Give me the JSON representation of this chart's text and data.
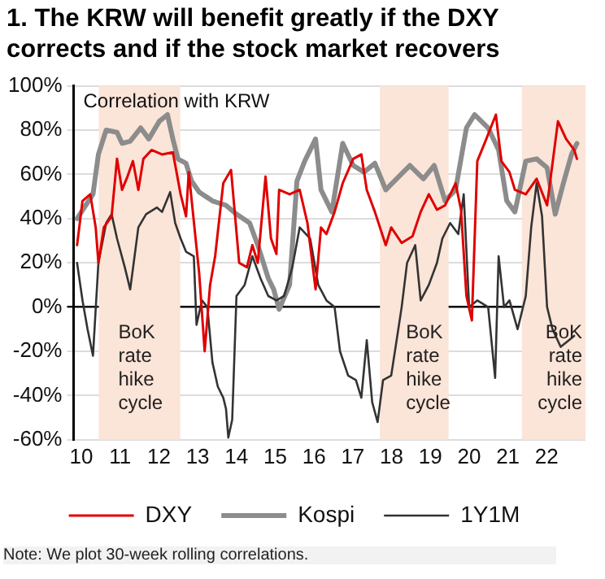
{
  "chart_data": {
    "type": "line",
    "title": "1. The KRW will benefit greatly if the DXY corrects and if the stock market recovers",
    "annotations": [
      "Correlation with KRW",
      "Note: We plot 30-week rolling correlations."
    ],
    "xlim": [
      2009.8,
      2023.0
    ],
    "xticks": [
      {
        "value": 2010,
        "label": "10"
      },
      {
        "value": 2011,
        "label": "11"
      },
      {
        "value": 2012,
        "label": "12"
      },
      {
        "value": 2013,
        "label": "13"
      },
      {
        "value": 2014,
        "label": "14"
      },
      {
        "value": 2015,
        "label": "15"
      },
      {
        "value": 2016,
        "label": "16"
      },
      {
        "value": 2017,
        "label": "17"
      },
      {
        "value": 2018,
        "label": "18"
      },
      {
        "value": 2019,
        "label": "19"
      },
      {
        "value": 2020,
        "label": "20"
      },
      {
        "value": 2021,
        "label": "21"
      },
      {
        "value": 2022,
        "label": "22"
      }
    ],
    "ylim": [
      -60,
      100
    ],
    "yticks": [
      {
        "value": -60,
        "label": "-60%"
      },
      {
        "value": -40,
        "label": "-40%"
      },
      {
        "value": -20,
        "label": "-20%"
      },
      {
        "value": 0,
        "label": "0%"
      },
      {
        "value": 20,
        "label": "20%"
      },
      {
        "value": 40,
        "label": "40%"
      },
      {
        "value": 60,
        "label": "60%"
      },
      {
        "value": 80,
        "label": "80%"
      },
      {
        "value": 100,
        "label": "100%"
      }
    ],
    "grid": "y",
    "legend": "bottom",
    "marker": "none",
    "line_style": "solid",
    "bands": [
      {
        "axis": "x",
        "from": 2010.45,
        "to": 2012.55,
        "label": "BoK rate hike cycle",
        "color": "#fbe4d8"
      },
      {
        "axis": "x",
        "from": 2017.7,
        "to": 2019.47,
        "label": "BoK rate hike cycle",
        "color": "#fbe4d8"
      },
      {
        "axis": "x",
        "from": 2021.36,
        "to": 2023.0,
        "label": "BoK rate hike cycle",
        "color": "#fbe4d8"
      }
    ],
    "series": [
      {
        "name": "DXY",
        "color": "#e00000",
        "x": [
          2009.89,
          2010.03,
          2010.23,
          2010.37,
          2010.44,
          2010.58,
          2010.78,
          2010.92,
          2011.05,
          2011.19,
          2011.33,
          2011.47,
          2011.6,
          2011.81,
          2012.08,
          2012.36,
          2012.56,
          2012.7,
          2012.77,
          2013.04,
          2013.18,
          2013.32,
          2013.45,
          2013.66,
          2013.86,
          2014.07,
          2014.27,
          2014.41,
          2014.55,
          2014.75,
          2014.89,
          2015.03,
          2015.1,
          2015.37,
          2015.63,
          2015.83,
          2016.04,
          2016.18,
          2016.32,
          2016.53,
          2016.74,
          2017.01,
          2017.22,
          2017.36,
          2017.57,
          2017.85,
          2017.99,
          2018.26,
          2018.54,
          2018.75,
          2018.96,
          2019.17,
          2019.38,
          2019.65,
          2019.79,
          2019.93,
          2020.07,
          2020.21,
          2020.42,
          2020.69,
          2020.83,
          2021.04,
          2021.18,
          2021.46,
          2021.74,
          2022.01,
          2022.29,
          2022.5,
          2022.71,
          2022.78
        ],
        "values": [
          28,
          48,
          51,
          36,
          20,
          36,
          41,
          67,
          53,
          59,
          66,
          53,
          67,
          71,
          69,
          70,
          51,
          41,
          61,
          15,
          -20,
          10,
          23,
          56,
          62,
          20,
          18,
          28,
          20,
          59,
          31,
          24,
          53,
          51,
          53,
          38,
          8,
          36,
          33,
          43,
          56,
          67,
          69,
          53,
          43,
          28,
          36,
          29,
          32,
          43,
          51,
          44,
          46,
          56,
          44,
          5,
          -6,
          66,
          75,
          87,
          66,
          61,
          53,
          51,
          58,
          46,
          84,
          76,
          71,
          67
        ]
      },
      {
        "name": "Kospi",
        "color": "#8c8c8c",
        "x": [
          2009.89,
          2010.3,
          2010.44,
          2010.64,
          2010.92,
          2011.05,
          2011.26,
          2011.53,
          2011.74,
          2012.01,
          2012.22,
          2012.36,
          2012.49,
          2012.7,
          2012.84,
          2013.04,
          2013.38,
          2013.73,
          2014.0,
          2014.34,
          2014.55,
          2014.82,
          2014.96,
          2015.1,
          2015.37,
          2015.56,
          2015.76,
          2016.04,
          2016.18,
          2016.46,
          2016.74,
          2017.01,
          2017.29,
          2017.57,
          2017.85,
          2018.13,
          2018.47,
          2018.82,
          2019.1,
          2019.38,
          2019.65,
          2019.93,
          2020.14,
          2020.49,
          2020.76,
          2020.97,
          2021.18,
          2021.46,
          2021.74,
          2022.01,
          2022.22,
          2022.43,
          2022.64,
          2022.78
        ],
        "values": [
          40,
          51,
          69,
          80,
          79,
          74,
          75,
          81,
          76,
          84,
          87,
          76,
          67,
          65,
          57,
          52,
          48,
          46,
          42,
          38,
          28,
          13,
          8,
          -1,
          10,
          57,
          66,
          76,
          53,
          43,
          74,
          64,
          61,
          65,
          53,
          58,
          64,
          58,
          64,
          48,
          53,
          81,
          87,
          81,
          71,
          48,
          43,
          66,
          67,
          63,
          42,
          56,
          69,
          74
        ]
      },
      {
        "name": "1Y1M",
        "color": "#333333",
        "x": [
          2009.89,
          2010.03,
          2010.16,
          2010.3,
          2010.44,
          2010.64,
          2010.78,
          2010.92,
          2011.12,
          2011.26,
          2011.47,
          2011.67,
          2011.95,
          2012.08,
          2012.29,
          2012.42,
          2012.56,
          2012.7,
          2012.9,
          2012.97,
          2013.11,
          2013.25,
          2013.38,
          2013.52,
          2013.66,
          2013.73,
          2013.79,
          2013.89,
          2014.0,
          2014.21,
          2014.41,
          2014.62,
          2014.82,
          2015.03,
          2015.23,
          2015.44,
          2015.63,
          2015.9,
          2016.11,
          2016.32,
          2016.53,
          2016.67,
          2016.88,
          2017.08,
          2017.22,
          2017.36,
          2017.5,
          2017.64,
          2017.78,
          2017.99,
          2018.13,
          2018.26,
          2018.4,
          2018.61,
          2018.75,
          2018.96,
          2019.17,
          2019.31,
          2019.51,
          2019.72,
          2019.86,
          2020.0,
          2020.21,
          2020.49,
          2020.67,
          2020.76,
          2020.9,
          2021.04,
          2021.25,
          2021.46,
          2021.6,
          2021.74,
          2021.88,
          2022.01,
          2022.15,
          2022.36,
          2022.57,
          2022.71
        ],
        "values": [
          20,
          3,
          -10,
          -22,
          20,
          38,
          42,
          31,
          18,
          8,
          36,
          42,
          45,
          43,
          52,
          38,
          31,
          25,
          23,
          -8,
          3,
          0,
          -25,
          -36,
          -41,
          -46,
          -59,
          -51,
          5,
          10,
          23,
          13,
          5,
          3,
          5,
          18,
          36,
          31,
          10,
          3,
          0,
          -20,
          -31,
          -33,
          -41,
          -15,
          -43,
          -52,
          -33,
          -31,
          -15,
          0,
          20,
          28,
          3,
          10,
          20,
          31,
          38,
          33,
          51,
          0,
          3,
          0,
          -32,
          23,
          0,
          3,
          -10,
          5,
          36,
          56,
          41,
          0,
          -10,
          -18,
          -15,
          -13
        ]
      }
    ]
  }
}
